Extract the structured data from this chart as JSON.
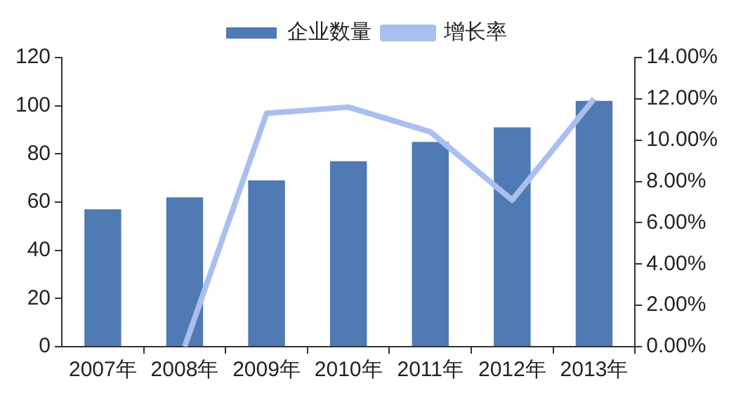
{
  "chart_data": {
    "type": "bar",
    "categories": [
      "2007年",
      "2008年",
      "2009年",
      "2010年",
      "2011年",
      "2012年",
      "2013年"
    ],
    "series": [
      {
        "name": "企业数量",
        "color": "#4f7ab3",
        "values": [
          57,
          62,
          69,
          77,
          85,
          91,
          102
        ]
      },
      {
        "name": "增长率",
        "type": "line",
        "axis": "y2",
        "color": "#a9bff0",
        "values": [
          null,
          0,
          11.3,
          11.6,
          10.4,
          7.1,
          12.0
        ]
      }
    ],
    "ylim": [
      0,
      120
    ],
    "yticks": [
      0,
      20,
      40,
      60,
      80,
      100,
      120
    ],
    "y2lim": [
      0,
      14
    ],
    "y2ticks": [
      {
        "value": 0,
        "label": "0.00%"
      },
      {
        "value": 2,
        "label": "2.00%"
      },
      {
        "value": 4,
        "label": "4.00%"
      },
      {
        "value": 6,
        "label": "6.00%"
      },
      {
        "value": 8,
        "label": "8.00%"
      },
      {
        "value": 10,
        "label": "10.00%"
      },
      {
        "value": 12,
        "label": "12.00%"
      },
      {
        "value": 14,
        "label": "14.00%"
      }
    ],
    "grid": false,
    "legend": "top",
    "marker": "none"
  }
}
